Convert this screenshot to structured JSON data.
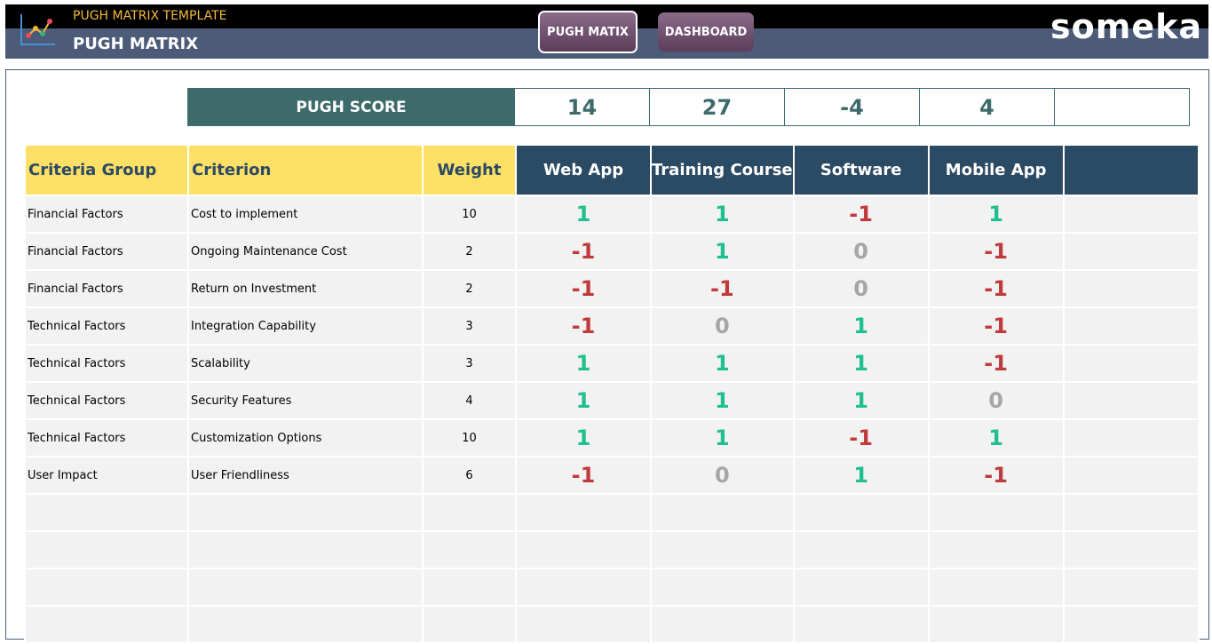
{
  "header": {
    "subtitle": "PUGH MATRIX TEMPLATE",
    "title": "PUGH MATRIX",
    "buttons": [
      "PUGH MATIX",
      "DASHBOARD"
    ],
    "brand": "someka"
  },
  "score": {
    "label": "PUGH SCORE",
    "values": [
      14,
      27,
      -4,
      4
    ]
  },
  "table": {
    "columns": [
      "Criteria Group",
      "Criterion",
      "Weight",
      "Web App",
      "Training Course",
      "Software",
      "Mobile App"
    ],
    "rows": [
      [
        "Financial Factors",
        "Cost to implement",
        10,
        1,
        1,
        -1,
        1
      ],
      [
        "Financial Factors",
        "Ongoing Maintenance Cost",
        2,
        -1,
        1,
        0,
        -1
      ],
      [
        "Financial Factors",
        "Return on Investment",
        2,
        -1,
        -1,
        0,
        -1
      ],
      [
        "Technical Factors",
        "Integration Capability",
        3,
        -1,
        0,
        1,
        -1
      ],
      [
        "Technical Factors",
        "Scalability",
        3,
        1,
        1,
        1,
        -1
      ],
      [
        "Technical Factors",
        "Security Features",
        4,
        1,
        1,
        1,
        0
      ],
      [
        "Technical Factors",
        "Customization Options",
        10,
        1,
        1,
        -1,
        1
      ],
      [
        "User Impact",
        "User Friendliness",
        6,
        -1,
        0,
        1,
        -1
      ]
    ]
  }
}
